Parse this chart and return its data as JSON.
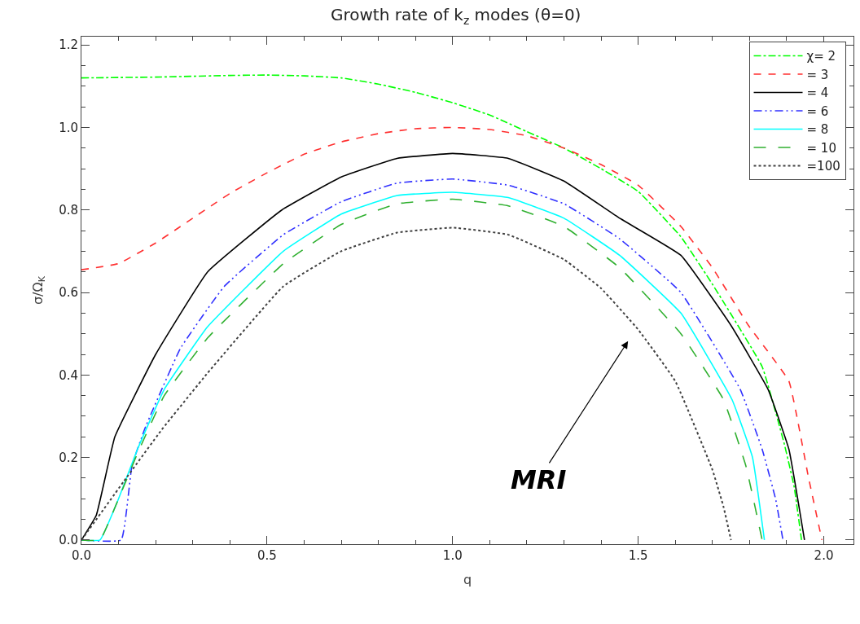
{
  "chart_data": {
    "type": "line",
    "title": "Growth rate of k$_{z}$ modes (θ=0)",
    "xlabel": "q",
    "ylabel": "σ/Ω$_{K}$",
    "xlim": [
      0,
      2.08
    ],
    "ylim": [
      -0.01,
      1.22
    ],
    "xticks": [
      {
        "value": 0,
        "label": "0.0"
      },
      0.5,
      {
        "value": 1,
        "label": "1.0"
      },
      1.5,
      {
        "value": 2,
        "label": "2.0"
      }
    ],
    "yticks": [
      {
        "value": 0,
        "label": "0.0"
      },
      0.2,
      0.4,
      0.6,
      0.8,
      {
        "value": 1,
        "label": "1.0"
      },
      1.2
    ],
    "legend": "top right",
    "marker": "none",
    "annotations": [
      "MRI"
    ],
    "series": [
      {
        "name": "χ= 2",
        "color": "#00ff00",
        "line_style": "dashdot",
        "x": [
          0,
          0.2,
          0.4,
          0.5,
          0.6,
          0.7,
          0.8,
          0.9,
          1.0,
          1.1,
          1.2,
          1.3,
          1.4,
          1.5,
          1.615,
          1.7,
          1.834,
          1.893,
          1.92,
          1.94
        ],
        "values": [
          1.12,
          1.122,
          1.126,
          1.127,
          1.125,
          1.12,
          1.105,
          1.085,
          1.06,
          1.03,
          0.99,
          0.95,
          0.9,
          0.845,
          0.735,
          0.62,
          0.42,
          0.235,
          0.13,
          0
        ]
      },
      {
        "name": "= 3",
        "color": "#ff3030",
        "line_style": "dashed",
        "x": [
          0,
          0.1,
          0.2,
          0.3,
          0.4,
          0.5,
          0.6,
          0.7,
          0.8,
          0.9,
          1.0,
          1.1,
          1.2,
          1.3,
          1.4,
          1.5,
          1.615,
          1.7,
          1.797,
          1.906,
          1.958,
          1.995
        ],
        "values": [
          0.655,
          0.67,
          0.72,
          0.78,
          0.84,
          0.89,
          0.935,
          0.965,
          0.985,
          0.997,
          1.0,
          0.995,
          0.98,
          0.95,
          0.91,
          0.86,
          0.76,
          0.66,
          0.52,
          0.385,
          0.155,
          0
        ]
      },
      {
        "name": "= 4",
        "color": "#000000",
        "line_style": "solid",
        "x": [
          0,
          0.04,
          0.09,
          0.2,
          0.34,
          0.54,
          0.7,
          0.85,
          1.0,
          1.15,
          1.3,
          1.45,
          1.615,
          1.75,
          1.85,
          1.906,
          1.948
        ],
        "values": [
          0,
          0.06,
          0.25,
          0.45,
          0.65,
          0.8,
          0.88,
          0.925,
          0.937,
          0.925,
          0.87,
          0.78,
          0.69,
          0.52,
          0.365,
          0.22,
          0
        ]
      },
      {
        "name": "= 6",
        "color": "#3030ff",
        "line_style": "dashdotdot",
        "x": [
          0,
          0.107,
          0.136,
          0.173,
          0.267,
          0.385,
          0.544,
          0.7,
          0.85,
          1.0,
          1.15,
          1.3,
          1.45,
          1.615,
          1.775,
          1.834,
          1.87,
          1.89
        ],
        "values": [
          0,
          0,
          0.18,
          0.275,
          0.465,
          0.615,
          0.74,
          0.82,
          0.865,
          0.875,
          0.86,
          0.815,
          0.73,
          0.6,
          0.365,
          0.22,
          0.1,
          0
        ]
      },
      {
        "name": "= 8",
        "color": "#00ffff",
        "line_style": "solid",
        "x": [
          0,
          0.05,
          0.1,
          0.151,
          0.223,
          0.34,
          0.544,
          0.7,
          0.85,
          1.0,
          1.15,
          1.3,
          1.45,
          1.615,
          1.753,
          1.808,
          1.84
        ],
        "values": [
          0,
          0,
          0.1,
          0.22,
          0.365,
          0.517,
          0.7,
          0.79,
          0.835,
          0.843,
          0.83,
          0.78,
          0.69,
          0.55,
          0.34,
          0.2,
          0
        ]
      },
      {
        "name": "= 10",
        "color": "#30b030",
        "line_style": "longdash",
        "x": [
          0,
          0.05,
          0.1,
          0.151,
          0.223,
          0.34,
          0.544,
          0.7,
          0.85,
          1.0,
          1.15,
          1.3,
          1.45,
          1.615,
          1.73,
          1.79,
          1.834
        ],
        "values": [
          0,
          0,
          0.1,
          0.21,
          0.35,
          0.49,
          0.67,
          0.765,
          0.815,
          0.826,
          0.81,
          0.76,
          0.66,
          0.5,
          0.34,
          0.18,
          0
        ]
      },
      {
        "name": "=100",
        "color": "#404040",
        "line_style": "dotted",
        "x": [
          0,
          0.114,
          0.216,
          0.34,
          0.544,
          0.7,
          0.85,
          1.0,
          1.15,
          1.3,
          1.4,
          1.5,
          1.6,
          1.7,
          1.73,
          1.75
        ],
        "values": [
          0,
          0.142,
          0.267,
          0.405,
          0.615,
          0.7,
          0.745,
          0.757,
          0.74,
          0.68,
          0.61,
          0.51,
          0.385,
          0.17,
          0.08,
          0
        ]
      }
    ]
  }
}
